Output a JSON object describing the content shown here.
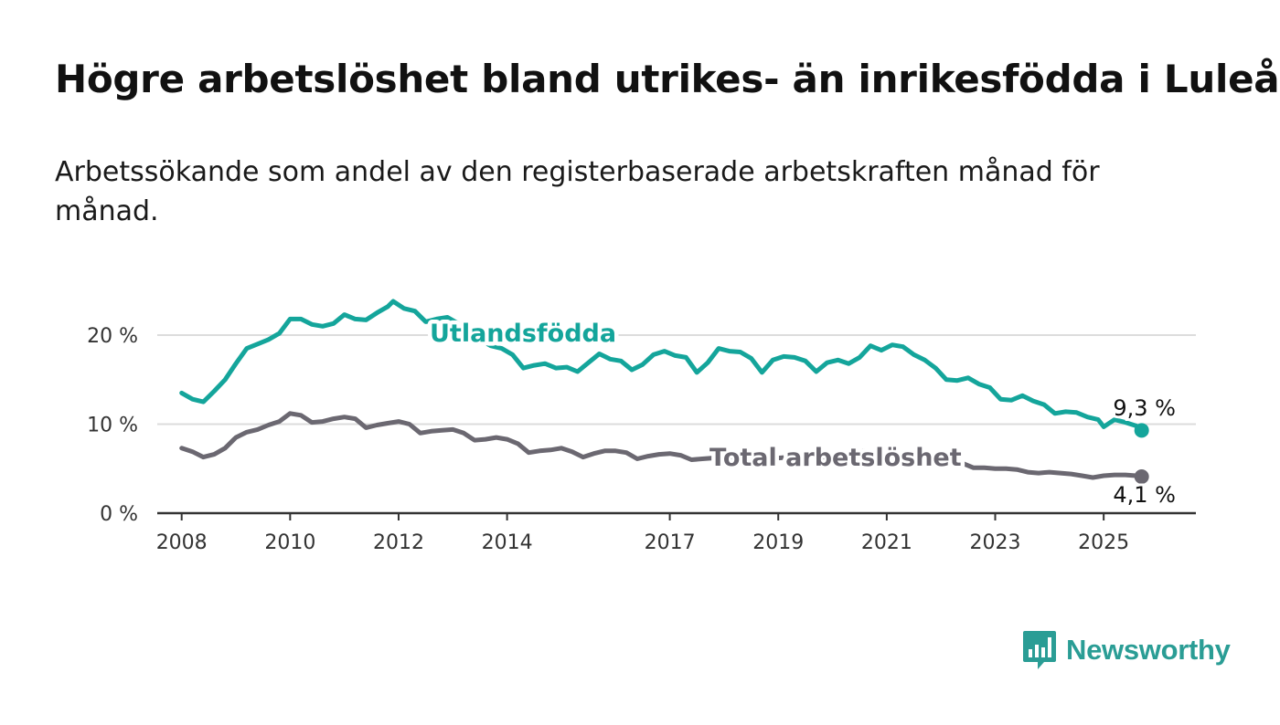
{
  "title": "Högre arbetslöshet bland utrikes- än inrikesfödda i Luleå",
  "subtitle": "Arbetssökande som andel av den registerbaserade arbetskraften månad för månad.",
  "brand": {
    "name": "Newsworthy"
  },
  "colors": {
    "utlandsfodda": "#14a59b",
    "total": "#6b6871",
    "grid": "#dcdcdc",
    "axis": "#333333"
  },
  "chart_data": {
    "type": "line",
    "title": "",
    "xlabel": "",
    "ylabel": "",
    "ylim": [
      0,
      20
    ],
    "yticks": [
      {
        "value": 0,
        "label": "0 %"
      },
      {
        "value": 10,
        "label": "10 %"
      },
      {
        "value": 20,
        "label": "20 %"
      }
    ],
    "xticks": [
      {
        "value": 2008,
        "label": "2008"
      },
      {
        "value": 2010,
        "label": "2010"
      },
      {
        "value": 2012,
        "label": "2012"
      },
      {
        "value": 2014,
        "label": "2014"
      },
      {
        "value": 2017,
        "label": "2017"
      },
      {
        "value": 2019,
        "label": "2019"
      },
      {
        "value": 2021,
        "label": "2021"
      },
      {
        "value": 2023,
        "label": "2023"
      },
      {
        "value": 2025,
        "label": "2025"
      }
    ],
    "grid": "horizontal",
    "series": [
      {
        "name": "Utlandsfödda",
        "color": "#14a59b",
        "end_label": "9,3 %",
        "points": [
          [
            2008.0,
            13.5
          ],
          [
            2008.2,
            12.8
          ],
          [
            2008.4,
            12.5
          ],
          [
            2008.6,
            13.7
          ],
          [
            2008.8,
            15.0
          ],
          [
            2009.0,
            16.8
          ],
          [
            2009.2,
            18.5
          ],
          [
            2009.4,
            19.0
          ],
          [
            2009.6,
            19.5
          ],
          [
            2009.8,
            20.2
          ],
          [
            2010.0,
            21.8
          ],
          [
            2010.2,
            21.8
          ],
          [
            2010.4,
            21.2
          ],
          [
            2010.6,
            21.0
          ],
          [
            2010.8,
            21.3
          ],
          [
            2011.0,
            22.3
          ],
          [
            2011.2,
            21.8
          ],
          [
            2011.4,
            21.7
          ],
          [
            2011.6,
            22.5
          ],
          [
            2011.8,
            23.2
          ],
          [
            2011.9,
            23.8
          ],
          [
            2012.1,
            23.0
          ],
          [
            2012.3,
            22.7
          ],
          [
            2012.5,
            21.5
          ],
          [
            2012.7,
            21.8
          ],
          [
            2012.9,
            22.0
          ],
          [
            2013.1,
            21.3
          ],
          [
            2013.3,
            20.2
          ],
          [
            2013.5,
            19.5
          ],
          [
            2013.7,
            18.8
          ],
          [
            2013.9,
            18.5
          ],
          [
            2014.1,
            17.8
          ],
          [
            2014.3,
            16.3
          ],
          [
            2014.5,
            16.6
          ],
          [
            2014.7,
            16.8
          ],
          [
            2014.9,
            16.3
          ],
          [
            2015.1,
            16.4
          ],
          [
            2015.3,
            15.9
          ],
          [
            2015.5,
            16.9
          ],
          [
            2015.7,
            17.9
          ],
          [
            2015.9,
            17.3
          ],
          [
            2016.1,
            17.1
          ],
          [
            2016.3,
            16.1
          ],
          [
            2016.5,
            16.7
          ],
          [
            2016.7,
            17.8
          ],
          [
            2016.9,
            18.2
          ],
          [
            2017.1,
            17.7
          ],
          [
            2017.3,
            17.5
          ],
          [
            2017.5,
            15.8
          ],
          [
            2017.7,
            16.9
          ],
          [
            2017.9,
            18.5
          ],
          [
            2018.1,
            18.2
          ],
          [
            2018.3,
            18.1
          ],
          [
            2018.5,
            17.4
          ],
          [
            2018.7,
            15.8
          ],
          [
            2018.9,
            17.2
          ],
          [
            2019.1,
            17.6
          ],
          [
            2019.3,
            17.5
          ],
          [
            2019.5,
            17.1
          ],
          [
            2019.7,
            15.9
          ],
          [
            2019.9,
            16.9
          ],
          [
            2020.1,
            17.2
          ],
          [
            2020.3,
            16.8
          ],
          [
            2020.5,
            17.5
          ],
          [
            2020.7,
            18.8
          ],
          [
            2020.9,
            18.3
          ],
          [
            2021.1,
            18.9
          ],
          [
            2021.3,
            18.7
          ],
          [
            2021.5,
            17.8
          ],
          [
            2021.7,
            17.2
          ],
          [
            2021.9,
            16.3
          ],
          [
            2022.1,
            15.0
          ],
          [
            2022.3,
            14.9
          ],
          [
            2022.5,
            15.2
          ],
          [
            2022.7,
            14.5
          ],
          [
            2022.9,
            14.1
          ],
          [
            2023.1,
            12.8
          ],
          [
            2023.3,
            12.7
          ],
          [
            2023.5,
            13.2
          ],
          [
            2023.7,
            12.6
          ],
          [
            2023.9,
            12.2
          ],
          [
            2024.1,
            11.2
          ],
          [
            2024.3,
            11.4
          ],
          [
            2024.5,
            11.3
          ],
          [
            2024.7,
            10.8
          ],
          [
            2024.9,
            10.5
          ],
          [
            2025.0,
            9.7
          ],
          [
            2025.2,
            10.5
          ],
          [
            2025.4,
            10.2
          ],
          [
            2025.6,
            9.8
          ],
          [
            2025.7,
            9.3
          ]
        ]
      },
      {
        "name": "Total arbetslöshet",
        "color": "#6b6871",
        "end_label": "4,1 %",
        "points": [
          [
            2008.0,
            7.3
          ],
          [
            2008.2,
            6.9
          ],
          [
            2008.4,
            6.3
          ],
          [
            2008.6,
            6.6
          ],
          [
            2008.8,
            7.3
          ],
          [
            2009.0,
            8.5
          ],
          [
            2009.2,
            9.1
          ],
          [
            2009.4,
            9.4
          ],
          [
            2009.6,
            9.9
          ],
          [
            2009.8,
            10.3
          ],
          [
            2010.0,
            11.2
          ],
          [
            2010.2,
            11.0
          ],
          [
            2010.4,
            10.2
          ],
          [
            2010.6,
            10.3
          ],
          [
            2010.8,
            10.6
          ],
          [
            2011.0,
            10.8
          ],
          [
            2011.2,
            10.6
          ],
          [
            2011.4,
            9.6
          ],
          [
            2011.6,
            9.9
          ],
          [
            2011.8,
            10.1
          ],
          [
            2012.0,
            10.3
          ],
          [
            2012.2,
            10.0
          ],
          [
            2012.4,
            9.0
          ],
          [
            2012.6,
            9.2
          ],
          [
            2012.8,
            9.3
          ],
          [
            2013.0,
            9.4
          ],
          [
            2013.2,
            9.0
          ],
          [
            2013.4,
            8.2
          ],
          [
            2013.6,
            8.3
          ],
          [
            2013.8,
            8.5
          ],
          [
            2014.0,
            8.3
          ],
          [
            2014.2,
            7.8
          ],
          [
            2014.4,
            6.8
          ],
          [
            2014.6,
            7.0
          ],
          [
            2014.8,
            7.1
          ],
          [
            2015.0,
            7.3
          ],
          [
            2015.2,
            6.9
          ],
          [
            2015.4,
            6.3
          ],
          [
            2015.6,
            6.7
          ],
          [
            2015.8,
            7.0
          ],
          [
            2016.0,
            7.0
          ],
          [
            2016.2,
            6.8
          ],
          [
            2016.4,
            6.1
          ],
          [
            2016.6,
            6.4
          ],
          [
            2016.8,
            6.6
          ],
          [
            2017.0,
            6.7
          ],
          [
            2017.2,
            6.5
          ],
          [
            2017.4,
            6.0
          ],
          [
            2017.6,
            6.1
          ],
          [
            2017.8,
            6.2
          ],
          [
            2018.0,
            6.3
          ],
          [
            2018.2,
            6.2
          ],
          [
            2018.4,
            6.0
          ],
          [
            2018.6,
            6.0
          ],
          [
            2018.8,
            6.1
          ],
          [
            2019.0,
            6.2
          ],
          [
            2019.2,
            6.3
          ],
          [
            2019.4,
            6.1
          ],
          [
            2019.6,
            5.9
          ],
          [
            2019.8,
            6.0
          ],
          [
            2020.0,
            6.3
          ],
          [
            2020.2,
            6.6
          ],
          [
            2020.4,
            6.8
          ],
          [
            2020.6,
            7.0
          ],
          [
            2020.8,
            6.9
          ],
          [
            2021.0,
            6.8
          ],
          [
            2021.2,
            6.5
          ],
          [
            2021.4,
            6.3
          ],
          [
            2021.6,
            6.0
          ],
          [
            2021.8,
            5.9
          ],
          [
            2022.0,
            5.9
          ],
          [
            2022.2,
            5.8
          ],
          [
            2022.4,
            5.6
          ],
          [
            2022.6,
            5.1
          ],
          [
            2022.8,
            5.1
          ],
          [
            2023.0,
            5.0
          ],
          [
            2023.2,
            5.0
          ],
          [
            2023.4,
            4.9
          ],
          [
            2023.6,
            4.6
          ],
          [
            2023.8,
            4.5
          ],
          [
            2024.0,
            4.6
          ],
          [
            2024.2,
            4.5
          ],
          [
            2024.4,
            4.4
          ],
          [
            2024.6,
            4.2
          ],
          [
            2024.8,
            4.0
          ],
          [
            2025.0,
            4.2
          ],
          [
            2025.2,
            4.3
          ],
          [
            2025.4,
            4.3
          ],
          [
            2025.6,
            4.2
          ],
          [
            2025.7,
            4.1
          ]
        ]
      }
    ]
  }
}
